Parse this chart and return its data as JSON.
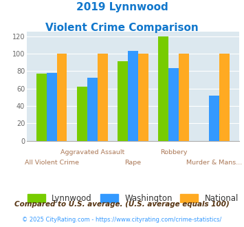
{
  "title_line1": "2019 Lynnwood",
  "title_line2": "Violent Crime Comparison",
  "categories": [
    "All Violent Crime",
    "Aggravated Assault",
    "Rape",
    "Robbery",
    "Murder & Mans..."
  ],
  "lynnwood": [
    77,
    62,
    91,
    120,
    0
  ],
  "washington": [
    78,
    72,
    103,
    83,
    52
  ],
  "national": [
    100,
    100,
    100,
    100,
    100
  ],
  "lynnwood_color": "#77cc00",
  "washington_color": "#3399ff",
  "national_color": "#ffaa22",
  "ylim": [
    0,
    125
  ],
  "yticks": [
    0,
    20,
    40,
    60,
    80,
    100,
    120
  ],
  "footnote1": "Compared to U.S. average. (U.S. average equals 100)",
  "footnote2": "© 2025 CityRating.com - https://www.cityrating.com/crime-statistics/",
  "bg_color": "#dce8ef",
  "legend_labels": [
    "Lynnwood",
    "Washington",
    "National"
  ],
  "title_color": "#1177cc",
  "label_color": "#aa7755",
  "footnote1_color": "#553311",
  "footnote2_color": "#3399ff"
}
